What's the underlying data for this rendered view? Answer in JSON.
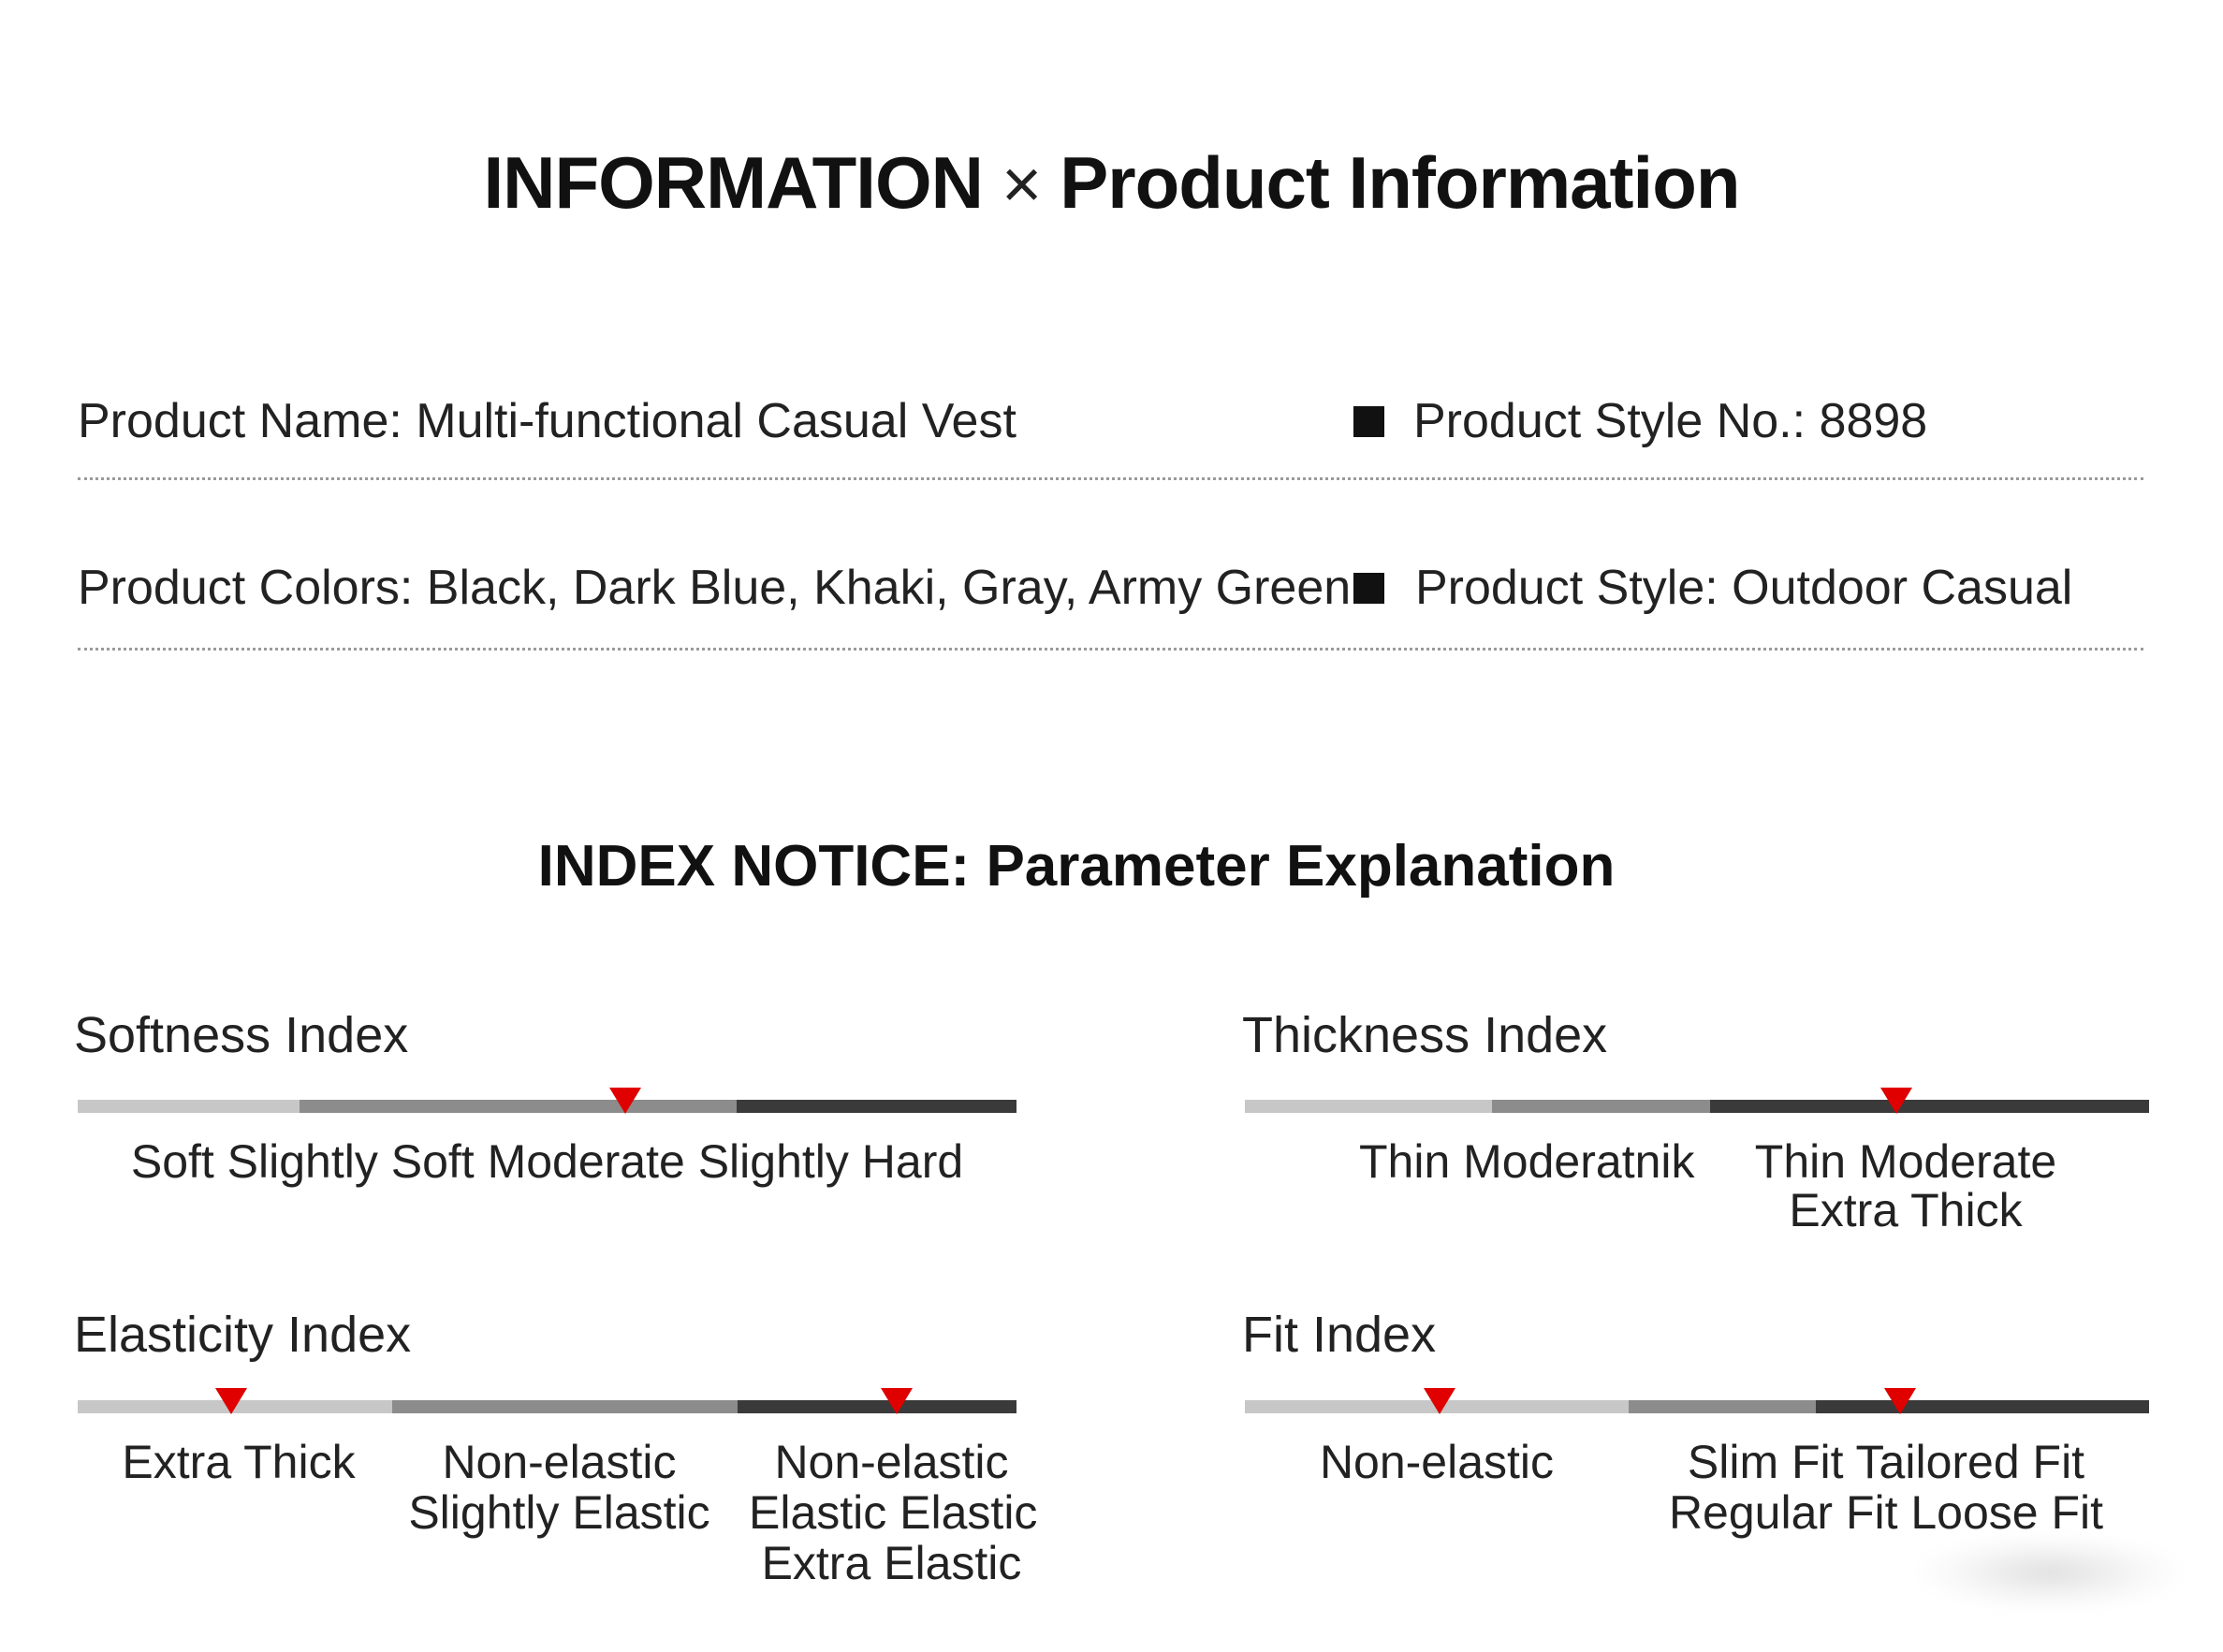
{
  "header": {
    "title_en": "INFORMATION",
    "title_sep": "×",
    "title_main": "Product Information"
  },
  "info": {
    "product_name": "Product Name: Multi-functional Casual Vest",
    "style_no": "Product Style No.: 8898",
    "colors": "Product Colors: Black, Dark Blue, Khaki, Gray, Army Green",
    "style": "Product Style: Outdoor Casual"
  },
  "index_notice": {
    "heading_bold": "INDEX NOTICE:",
    "heading_rest": "Parameter Explanation"
  },
  "indices": {
    "softness": {
      "title": "Softness Index",
      "labels": [
        "Soft Slightly Soft Moderate Slightly Hard"
      ],
      "marker_position": 0.58
    },
    "thickness": {
      "title": "Thickness Index",
      "label_left": "Thin Moderatnik",
      "label_right_line1": "Thin Moderate",
      "label_right_line2": "Extra Thick",
      "marker_position": 0.72
    },
    "elasticity": {
      "title": "Elasticity Index",
      "label_a": "Extra Thick",
      "label_b_line1": "Non-elastic",
      "label_b_line2": "Slightly Elastic",
      "label_c_line1": "Non-elastic",
      "label_c_line2": "Elastic Elastic",
      "label_c_line3": "Extra Elastic",
      "marker_positions": [
        0.165,
        0.875
      ]
    },
    "fit": {
      "title": "Fit Index",
      "label_left": "Non-elastic",
      "label_right_line1": "Slim Fit Tailored Fit",
      "label_right_line2": "Regular Fit Loose Fit",
      "marker_positions": [
        0.215,
        0.72
      ]
    }
  },
  "colors": {
    "marker": "#e00000",
    "bar_light": "#c7c7c7",
    "bar_mid": "#8c8c8c",
    "bar_dark": "#3a3a3a"
  }
}
